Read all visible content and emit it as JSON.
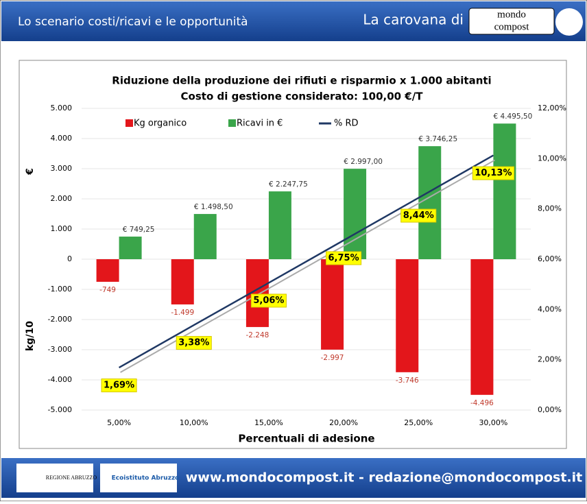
{
  "header": {
    "title": "Lo scenario costi/ricavi e le opportunità",
    "brand": "La carovana di",
    "logo": [
      "mondo",
      "compost"
    ]
  },
  "chart_data": {
    "type": "bar-line",
    "title": [
      "Riduzione della produzione dei rifiuti e risparmio x 1.000 abitanti",
      "Costo di gestione considerato: 100,00 €/T"
    ],
    "ylabel_top": "€",
    "ylabel_bottom": "kg/10",
    "xlabel": "Percentuali di adesione",
    "categories": [
      "5,00%",
      "10,00%",
      "15,00%",
      "20,00%",
      "25,00%",
      "30,00%"
    ],
    "series": [
      {
        "name": "Kg organico",
        "color": "#e3161b",
        "values": [
          -749,
          -1499,
          -2248,
          -2997,
          -3746,
          -4496
        ],
        "value_labels": [
          "-749",
          "-1.499",
          "-2.248",
          "-2.997",
          "-3.746",
          "-4.496"
        ]
      },
      {
        "name": "Ricavi in €",
        "color": "#3aa54a",
        "values": [
          749.25,
          1498.5,
          2247.75,
          2997,
          3746.25,
          4495.5
        ],
        "value_labels": [
          "€ 749,25",
          "€ 1.498,50",
          "€ 2.247,75",
          "€ 2.997,00",
          "€ 3.746,25",
          "€ 4.495,50"
        ]
      },
      {
        "name": "% RD",
        "color": "#1f3864",
        "axis": "y2",
        "values": [
          1.69,
          3.38,
          5.06,
          6.75,
          8.44,
          10.13
        ],
        "value_labels": [
          "1,69%",
          "3,38%",
          "5,06%",
          "6,75%",
          "8,44%",
          "10,13%"
        ]
      }
    ],
    "ylim": [
      -5000,
      5000
    ],
    "yticks": [
      {
        "value": -5000,
        "label": "-5.000"
      },
      {
        "value": -4000,
        "label": "-4.000"
      },
      {
        "value": -3000,
        "label": "-3.000"
      },
      {
        "value": -2000,
        "label": "-2.000"
      },
      {
        "value": -1000,
        "label": "-1.000"
      },
      0,
      {
        "value": 1000,
        "label": "1.000"
      },
      {
        "value": 2000,
        "label": "2.000"
      },
      {
        "value": 3000,
        "label": "3.000"
      },
      {
        "value": 4000,
        "label": "4.000"
      },
      {
        "value": 5000,
        "label": "5.000"
      }
    ],
    "y2lim": [
      0,
      12
    ],
    "y2ticks": [
      {
        "value": 0,
        "label": "0,00%"
      },
      {
        "value": 2,
        "label": "2,00%"
      },
      {
        "value": 4,
        "label": "4,00%"
      },
      {
        "value": 6,
        "label": "6,00%"
      },
      {
        "value": 8,
        "label": "8,00%"
      },
      {
        "value": 10,
        "label": "10,00%"
      },
      {
        "value": 12,
        "label": "12,00%"
      }
    ],
    "grid": true,
    "legend": "top"
  },
  "footer": {
    "logos": [
      "REGIONE ABRUZZO",
      "Ecoistituto Abruzzo"
    ],
    "contact": "www.mondocompost.it - redazione@mondocompost.it"
  }
}
